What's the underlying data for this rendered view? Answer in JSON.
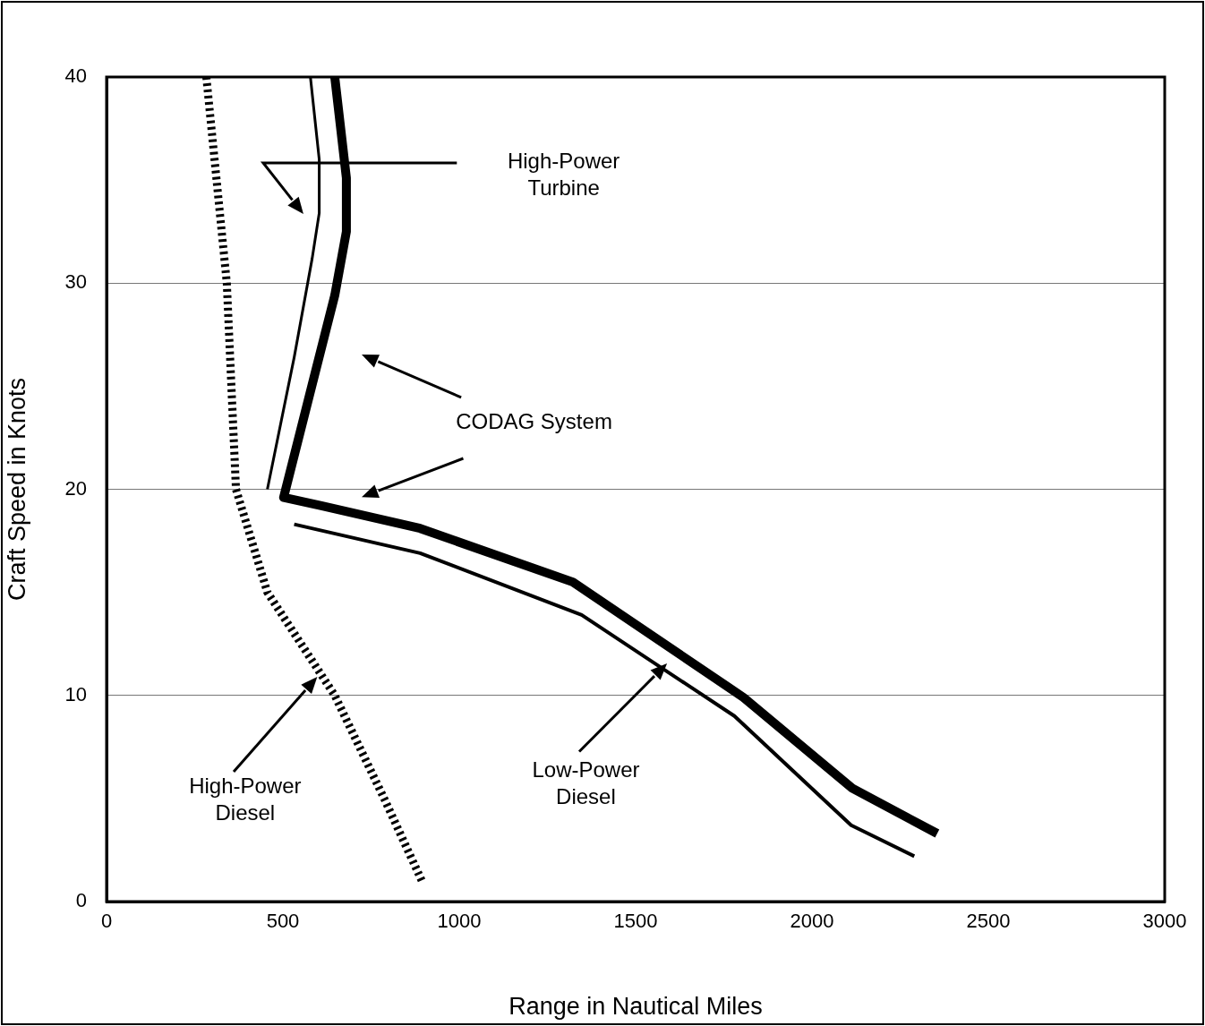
{
  "chart_data": {
    "type": "line",
    "xlabel": "Range in Nautical Miles",
    "ylabel": "Craft Speed in Knots",
    "xlim": [
      0,
      3000
    ],
    "xticks": [
      0,
      500,
      1000,
      1500,
      2000,
      2500,
      3000
    ],
    "ylim": [
      0,
      40
    ],
    "yticks": [
      0,
      10,
      20,
      30,
      40
    ],
    "grid": "y",
    "legend": false,
    "marker": "none",
    "series": [
      {
        "color": "#000000",
        "line_style": "dotted",
        "x": [
          283,
          341,
          367,
          456,
          647,
          787,
          894
        ],
        "values": [
          40,
          30,
          20,
          15,
          10,
          5,
          1
        ]
      },
      {
        "color": "#000000",
        "line_style": "solid",
        "x": [
          578,
          603,
          603,
          583,
          532,
          456
        ],
        "values": [
          40,
          36,
          33.4,
          31.2,
          26.4,
          20
        ]
      },
      {
        "color": "#000000",
        "line_style": "solid",
        "x": [
          647,
          680,
          680,
          647,
          570,
          502,
          609,
          889,
          1322,
          1806,
          2114,
          2355
        ],
        "values": [
          40,
          35.1,
          32.5,
          29.4,
          24.2,
          19.6,
          19.2,
          18.1,
          15.5,
          9.9,
          5.5,
          3.3
        ]
      },
      {
        "color": "#000000",
        "line_style": "solid",
        "x": [
          532,
          889,
          1347,
          1780,
          2111,
          2290
        ],
        "values": [
          18.3,
          16.9,
          13.9,
          9,
          3.7,
          2.2
        ]
      }
    ],
    "annotations": [
      "High-Power\nTurbine",
      "CODAG System",
      "High-Power\nDiesel",
      "Low-Power\nDiesel"
    ]
  }
}
